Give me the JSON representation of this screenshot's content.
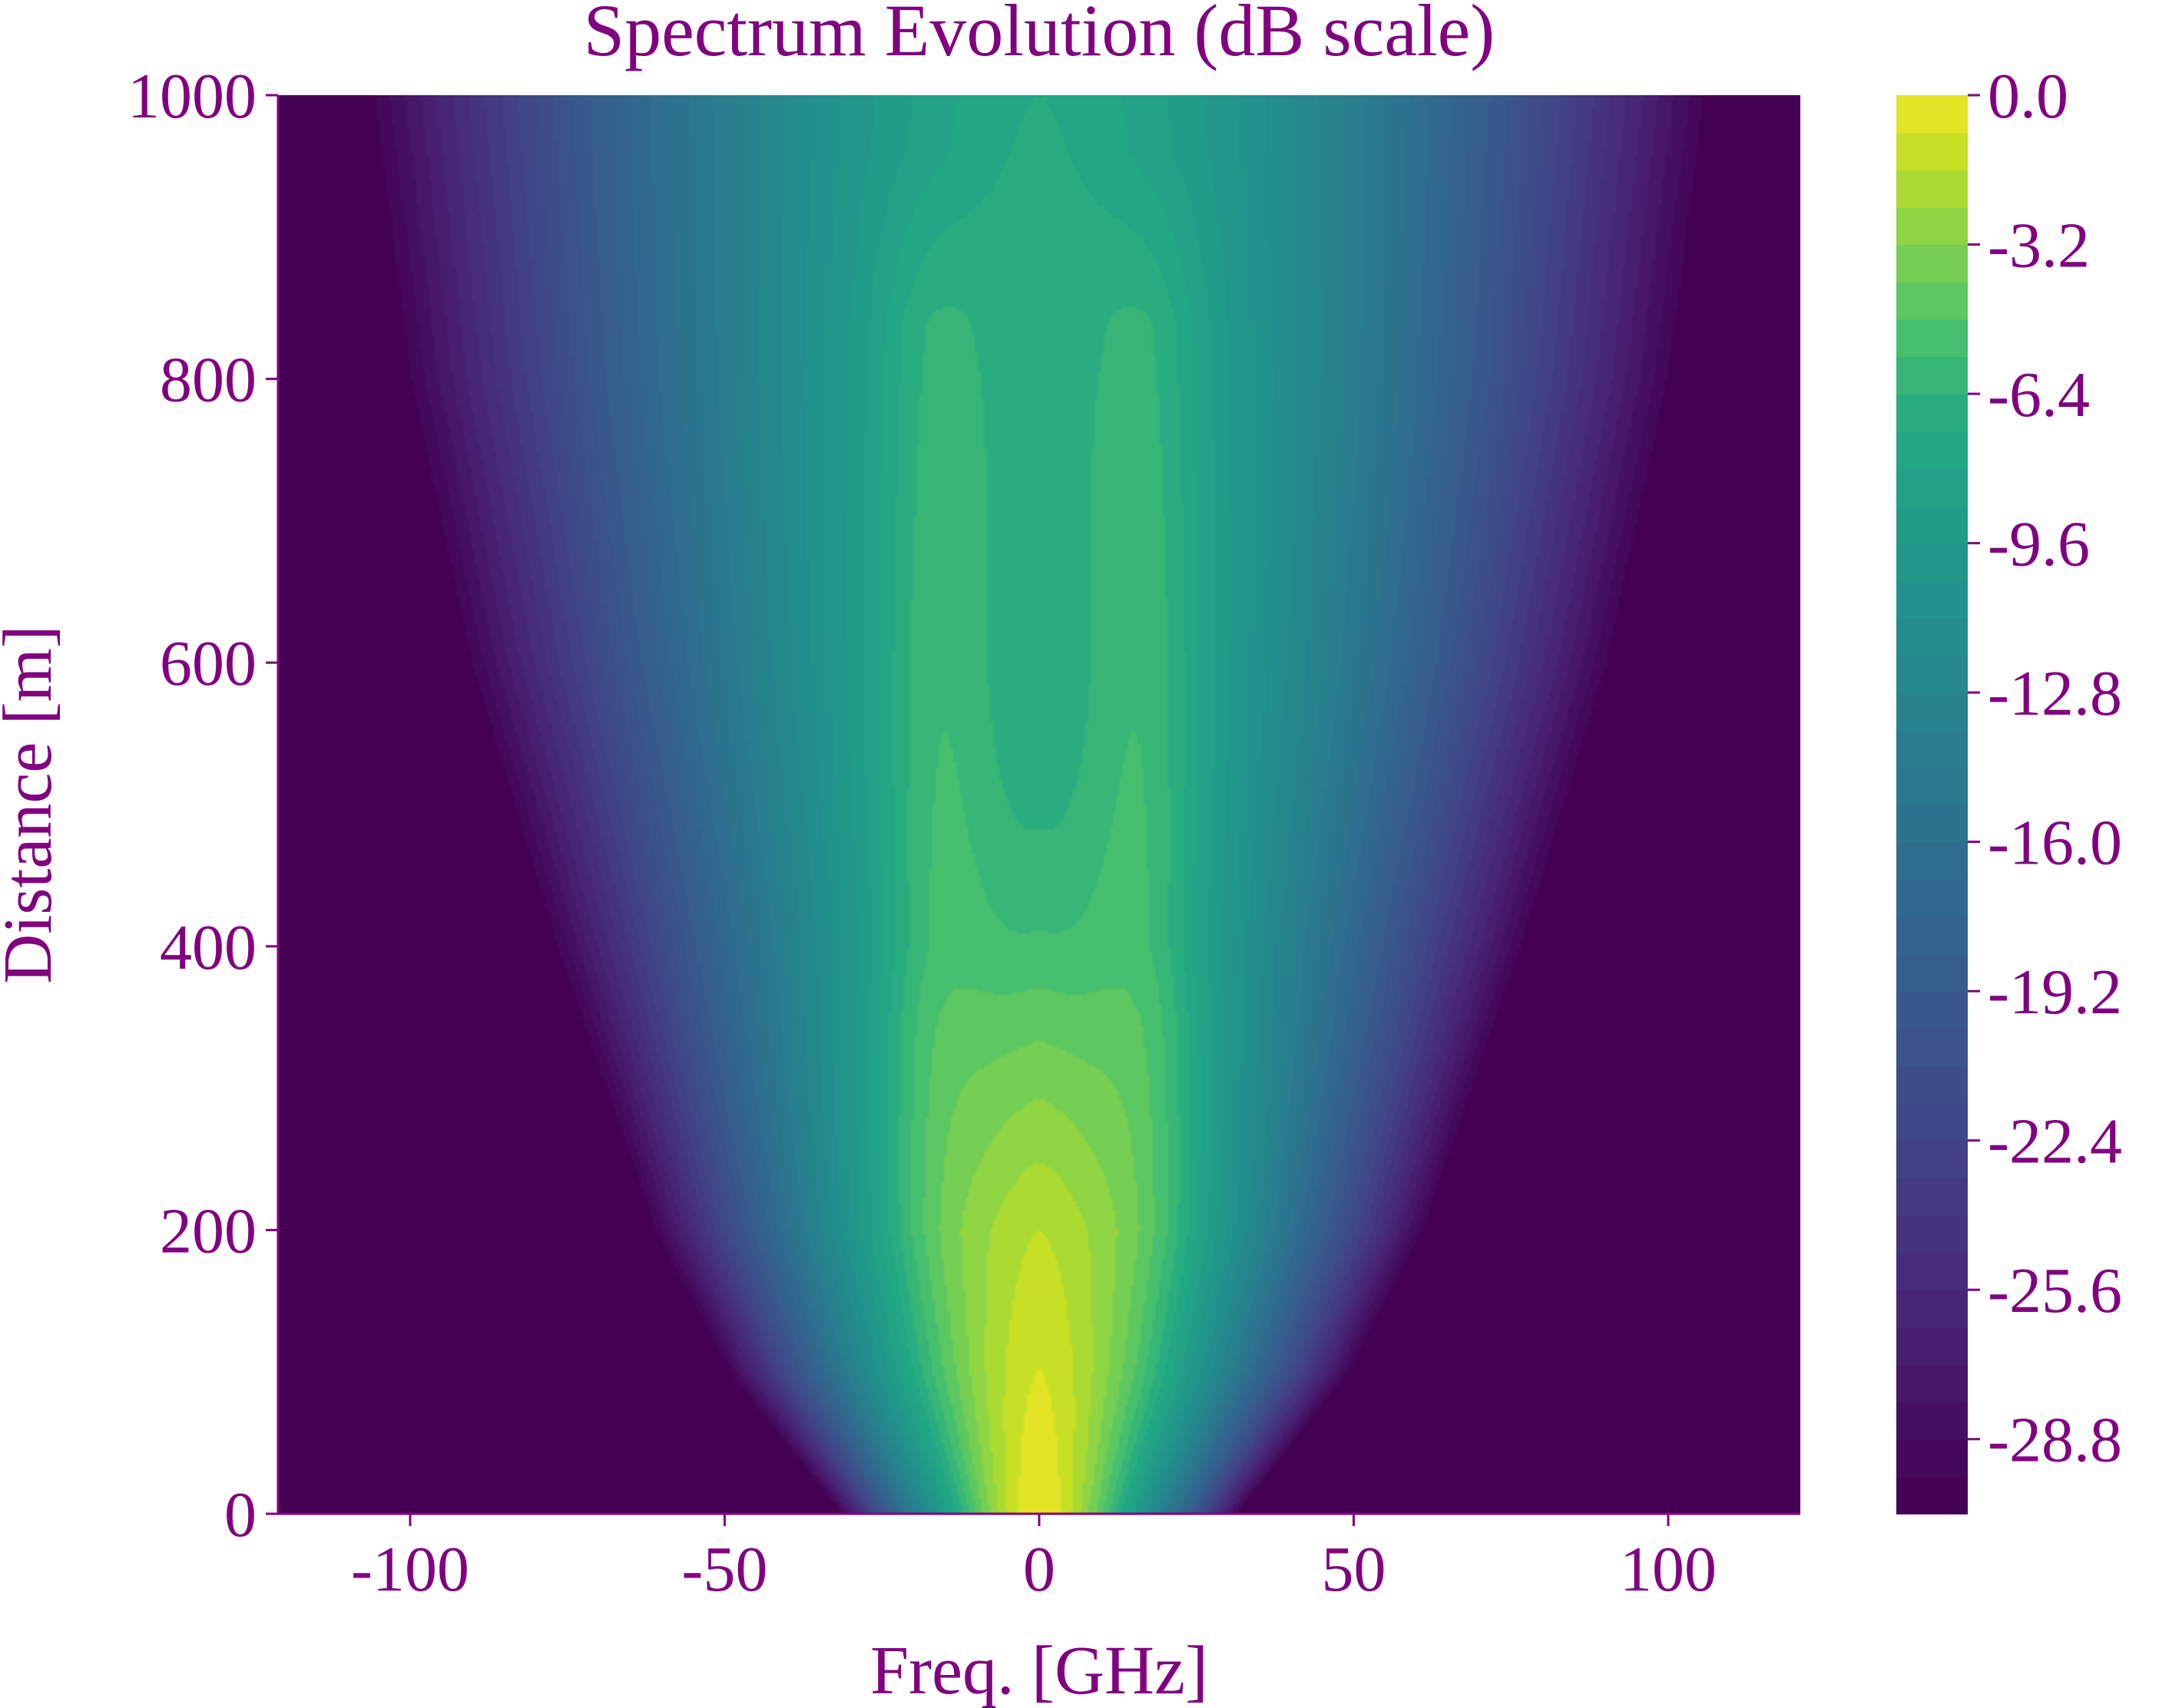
{
  "chart_data": {
    "type": "heatmap",
    "title": "Spectrum Evolution (dB scale)",
    "xlabel": "Freq. [GHz]",
    "ylabel": "Distance [m]",
    "xlim": [
      -121,
      121
    ],
    "ylim": [
      0,
      1000
    ],
    "x_ticks": [
      -100,
      -50,
      0,
      50,
      100
    ],
    "x_tick_labels": [
      "-100",
      "-50",
      "0",
      "50",
      "100"
    ],
    "y_ticks": [
      0,
      200,
      400,
      600,
      800,
      1000
    ],
    "y_tick_labels": [
      "0",
      "200",
      "400",
      "600",
      "800",
      "1000"
    ],
    "colorbar": {
      "colormap": "viridis",
      "range": [
        -30.4,
        0.0
      ],
      "ticks": [
        0.0,
        -3.2,
        -6.4,
        -9.6,
        -12.8,
        -16.0,
        -19.2,
        -22.4,
        -25.6,
        -28.8
      ],
      "tick_labels": [
        "0.0",
        "-3.2",
        "-6.4",
        "-9.6",
        "-12.8",
        "-16.0",
        "-19.2",
        "-22.4",
        "-25.6",
        "-28.8"
      ],
      "levels": 38
    },
    "spectral_width_at_-30dB_GHz": [
      {
        "distance": 0,
        "half_width": 32
      },
      {
        "distance": 100,
        "half_width": 50
      },
      {
        "distance": 200,
        "half_width": 62
      },
      {
        "distance": 400,
        "half_width": 78
      },
      {
        "distance": 600,
        "half_width": 92
      },
      {
        "distance": 800,
        "half_width": 102
      },
      {
        "distance": 1000,
        "half_width": 108
      }
    ],
    "peak_level_dB": [
      {
        "distance": 0,
        "value": 0.0
      },
      {
        "distance": 200,
        "value": -1.6
      },
      {
        "distance": 400,
        "value": -4.8
      },
      {
        "distance": 600,
        "value": -5.6
      },
      {
        "distance": 800,
        "value": -6.4
      },
      {
        "distance": 1000,
        "value": -7.2
      }
    ],
    "side_lobes": [
      {
        "center_freq": -18,
        "top_distance": 840
      },
      {
        "center_freq": 18,
        "top_distance": 840
      }
    ],
    "colors": {
      "text": "#800080",
      "axis": "#800080",
      "background": "#ffffff"
    }
  }
}
